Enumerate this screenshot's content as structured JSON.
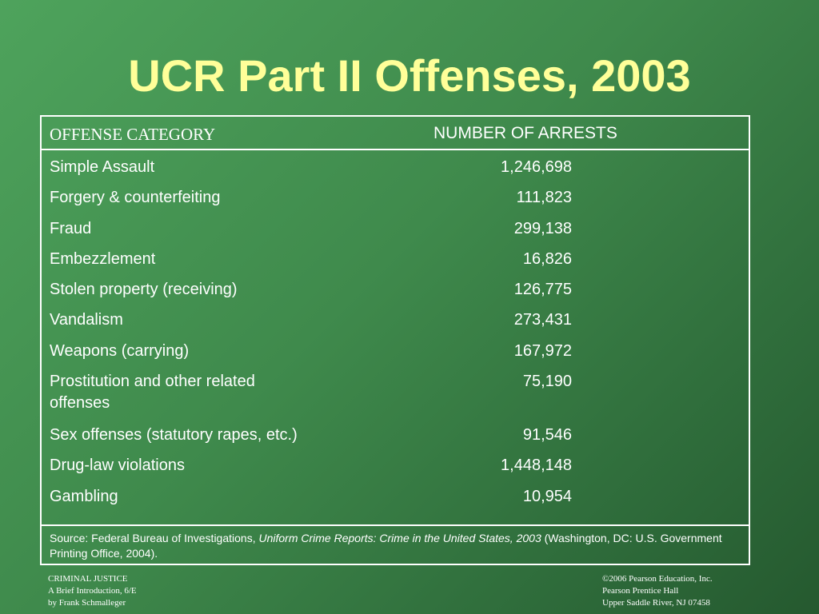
{
  "slide": {
    "title": "UCR Part II Offenses, 2003"
  },
  "table": {
    "header_offense": "OFFENSE CATEGORY",
    "header_arrests": "NUMBER OF ARRESTS",
    "rows": [
      {
        "offense": "Simple Assault",
        "arrests": "1,246,698"
      },
      {
        "offense": "Forgery & counterfeiting",
        "arrests": "111,823"
      },
      {
        "offense": "Fraud",
        "arrests": "299,138"
      },
      {
        "offense": "Embezzlement",
        "arrests": "16,826"
      },
      {
        "offense": "Stolen property (receiving)",
        "arrests": "126,775"
      },
      {
        "offense": "Vandalism",
        "arrests": "273,431"
      },
      {
        "offense": "Weapons (carrying)",
        "arrests": "167,972"
      },
      {
        "offense": "Prostitution and other related offenses",
        "arrests": "75,190"
      },
      {
        "offense": "Sex offenses (statutory rapes, etc.)",
        "arrests": "91,546"
      },
      {
        "offense": "Drug-law violations",
        "arrests": "1,448,148"
      },
      {
        "offense": "Gambling",
        "arrests": "10,954"
      }
    ],
    "source_prefix": "Source: Federal Bureau of Investigations, ",
    "source_title": "Uniform Crime Reports: Crime in the United States, 2003",
    "source_suffix": " (Washington, DC: U.S. Government Printing Office, 2004)."
  },
  "footer": {
    "left": [
      "CRIMINAL JUSTICE",
      "A Brief Introduction, 6/E",
      "by Frank Schmalleger"
    ],
    "right": [
      "©2006 Pearson Education, Inc.",
      "Pearson Prentice Hall",
      "Upper Saddle River, NJ 07458"
    ]
  },
  "colors": {
    "title": "#ffff99",
    "text": "#ffffff",
    "background": "#3f8a4c"
  }
}
